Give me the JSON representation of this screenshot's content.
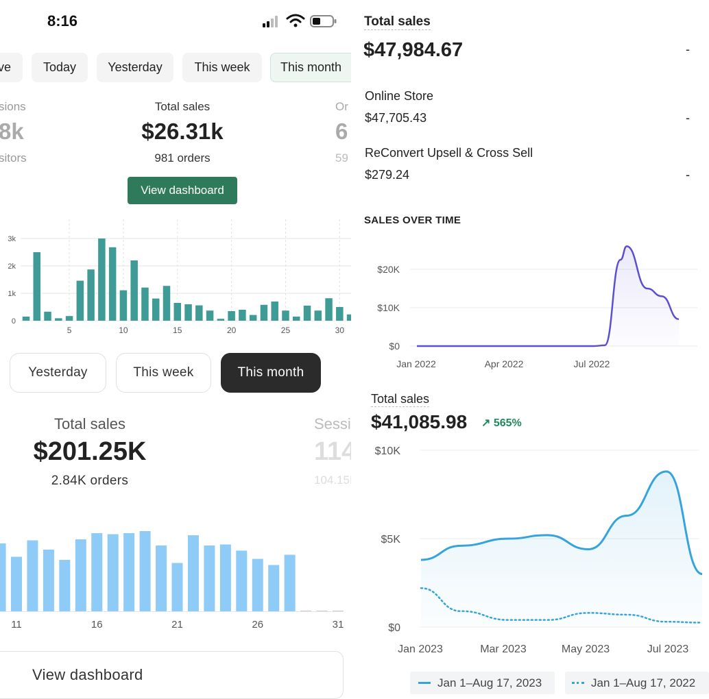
{
  "left_top": {
    "status": {
      "time": "8:16"
    },
    "tabs": [
      {
        "label": "ve"
      },
      {
        "label": "Today"
      },
      {
        "label": "Yesterday"
      },
      {
        "label": "This week"
      },
      {
        "label": "This month",
        "active": true
      }
    ],
    "metrics": {
      "left": {
        "label": "sions",
        "value": "8k",
        "sub": "sitors"
      },
      "center": {
        "label": "Total sales",
        "value": "$26.31k",
        "sub": "981 orders"
      },
      "right": {
        "label": "Or",
        "value": "6",
        "sub": "59"
      }
    },
    "button": {
      "label": "View dashboard"
    },
    "chart_data": {
      "type": "bar",
      "ytick_labels": [
        "0",
        "1k",
        "2k",
        "3k"
      ],
      "ylim": [
        0,
        3000
      ],
      "xtick_labels": [
        "5",
        "10",
        "15",
        "20",
        "25",
        "30"
      ],
      "x": [
        1,
        2,
        3,
        4,
        5,
        6,
        7,
        8,
        9,
        10,
        11,
        12,
        13,
        14,
        15,
        16,
        17,
        18,
        19,
        20,
        21,
        22,
        23,
        24,
        25,
        26,
        27,
        28,
        29,
        30,
        31
      ],
      "values": [
        150,
        2500,
        330,
        90,
        170,
        1460,
        1870,
        3000,
        2680,
        1110,
        2200,
        1210,
        810,
        1270,
        650,
        600,
        560,
        370,
        70,
        350,
        400,
        210,
        580,
        700,
        370,
        150,
        550,
        370,
        820,
        500,
        230
      ],
      "color": "#3f9b96"
    }
  },
  "left_bottom": {
    "pills": [
      {
        "label": "Yesterday"
      },
      {
        "label": "This week"
      },
      {
        "label": "This month",
        "active": true
      }
    ],
    "metrics": {
      "left": {
        "label": "Total sales",
        "value": "$201.25K",
        "sub": "2.84K orders"
      },
      "right": {
        "label": "Session",
        "value": "114.",
        "sub": "104.15K"
      }
    },
    "button": {
      "label": "View dashboard"
    },
    "chart_data": {
      "type": "bar",
      "xtick_labels": [
        "11",
        "16",
        "21",
        "26",
        "31"
      ],
      "x": [
        9,
        10,
        11,
        12,
        13,
        14,
        15,
        16,
        17,
        18,
        19,
        20,
        21,
        22,
        23,
        24,
        25,
        26,
        27,
        28,
        29,
        30,
        31
      ],
      "values": [
        6.9,
        6.6,
        5.3,
        6.9,
        6.0,
        5.0,
        7.0,
        7.6,
        7.5,
        7.6,
        7.8,
        6.4,
        4.7,
        7.4,
        6.4,
        6.5,
        5.9,
        5.1,
        4.5,
        5.5,
        0,
        0,
        0
      ],
      "color": "#8ecbf7"
    }
  },
  "right": {
    "total_sales": {
      "label": "Total sales",
      "value": "$47,984.67",
      "dash": "-",
      "rows": [
        {
          "name": "Online Store",
          "value": "$47,705.43",
          "dash": "-"
        },
        {
          "name": "ReConvert Upsell & Cross Sell",
          "value": "$279.24",
          "dash": "-"
        }
      ]
    },
    "sales_over_time": {
      "title": "SALES OVER TIME",
      "chart_data": {
        "type": "area",
        "ytick_labels": [
          "$20K",
          "$10K",
          "$0"
        ],
        "xtick_labels": [
          "Jan 2022",
          "Apr 2022",
          "Jul 2022"
        ],
        "x": [
          "Jan 2022",
          "Feb 2022",
          "Mar 2022",
          "Apr 2022",
          "May 2022",
          "Jun 2022",
          "Jul 2022",
          "Aug 2022 (early)",
          "Aug 2022 (mid)",
          "Aug 2022 (late)",
          "Sep 2022",
          "Sep 2022 (late)",
          "Oct 2022"
        ],
        "values": [
          0,
          0,
          0,
          0,
          0,
          0,
          0,
          200,
          22500,
          26000,
          15000,
          13000,
          7000
        ],
        "ylim": [
          0,
          28000
        ],
        "color": "#5b4fcf"
      }
    },
    "comparison": {
      "label": "Total sales",
      "value": "$41,085.98",
      "change": "565%",
      "change_arrow": "↗",
      "chart_data": {
        "type": "line",
        "ytick_labels": [
          "$10K",
          "$5K",
          "$0"
        ],
        "ylim": [
          0,
          10000
        ],
        "xtick_labels": [
          "Jan 2023",
          "Mar 2023",
          "May 2023",
          "Jul 2023"
        ],
        "series": [
          {
            "name": "Jan 1–Aug 17, 2023",
            "style": "solid",
            "color": "#35a3dc",
            "x": [
              "Jan 2023",
              "Feb 2023",
              "Mar 2023",
              "Apr 2023",
              "May 2023",
              "Jun 2023",
              "Jul 2023",
              "Aug 2023"
            ],
            "values": [
              3800,
              4600,
              5000,
              5200,
              4400,
              6300,
              8800,
              3000
            ]
          },
          {
            "name": "Jan 1–Aug 17, 2022",
            "style": "dotted",
            "color": "#35a3dc",
            "x": [
              "Jan",
              "Feb",
              "Mar",
              "Apr",
              "May",
              "Jun",
              "Jul",
              "Aug"
            ],
            "values": [
              2200,
              900,
              400,
              400,
              800,
              700,
              300,
              250
            ]
          }
        ]
      }
    }
  }
}
